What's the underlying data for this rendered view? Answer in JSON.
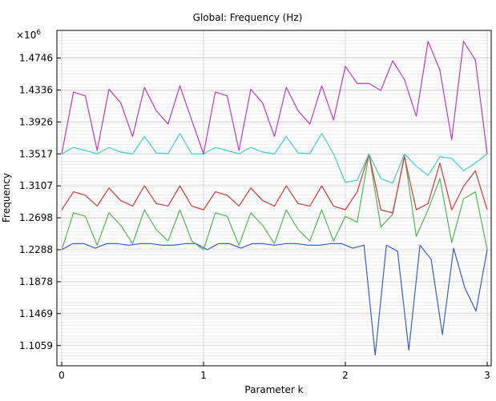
{
  "chart_data": {
    "type": "line",
    "title": "Global: Frequency (Hz)",
    "xlabel": "Parameter k",
    "ylabel": "Frequency",
    "y_multiplier": "×10",
    "y_multiplier_exp": "6",
    "xlim": [
      0,
      3
    ],
    "ylim": [
      1.08,
      1.51
    ],
    "x_ticks": [
      0,
      1,
      2,
      3
    ],
    "y_ticks": [
      1.1059,
      1.1469,
      1.1878,
      1.2288,
      1.2698,
      1.3107,
      1.3517,
      1.3926,
      1.4336,
      1.4746
    ],
    "grid": true,
    "series": [
      {
        "color": "#3b5bdb",
        "values": [
          1.2288,
          1.2366,
          1.2366,
          1.2308,
          1.2366,
          1.2366,
          1.2346,
          1.2366,
          1.2366,
          1.2346,
          1.2346,
          1.2366,
          1.2366,
          1.2288,
          1.2366,
          1.2366,
          1.2308,
          1.2366,
          1.2366,
          1.2346,
          1.2366,
          1.2366,
          1.2346,
          1.2346,
          1.2366,
          1.2366,
          1.2308,
          1.2346,
          1.0937,
          1.2346,
          1.2268,
          1.1,
          1.2346,
          1.2163,
          1.12,
          1.2308,
          1.18,
          1.15,
          1.2288
        ]
      },
      {
        "color": "#4cbb4c",
        "values": [
          1.2288,
          1.2762,
          1.2717,
          1.2346,
          1.2762,
          1.26,
          1.2366,
          1.28,
          1.2546,
          1.24,
          1.28,
          1.24,
          1.2288,
          1.2762,
          1.2717,
          1.2346,
          1.2762,
          1.26,
          1.2366,
          1.28,
          1.2546,
          1.24,
          1.28,
          1.24,
          1.2717,
          1.264,
          1.3517,
          1.258,
          1.274,
          1.35,
          1.246,
          1.28,
          1.32,
          1.238,
          1.294,
          1.3031,
          1.2288
        ]
      },
      {
        "color": "#d93636",
        "values": [
          1.28,
          1.3031,
          1.2987,
          1.2848,
          1.308,
          1.2917,
          1.2848,
          1.3107,
          1.288,
          1.2848,
          1.3107,
          1.2848,
          1.28,
          1.3031,
          1.2987,
          1.2848,
          1.308,
          1.2917,
          1.2848,
          1.3107,
          1.288,
          1.2848,
          1.3107,
          1.2848,
          1.28,
          1.3031,
          1.3517,
          1.28,
          1.276,
          1.348,
          1.28,
          1.288,
          1.34,
          1.28,
          1.31,
          1.33,
          1.28
        ]
      },
      {
        "color": "#3fcfcf",
        "values": [
          1.3517,
          1.36,
          1.356,
          1.3517,
          1.36,
          1.354,
          1.3517,
          1.374,
          1.353,
          1.352,
          1.378,
          1.3517,
          1.3517,
          1.36,
          1.356,
          1.3517,
          1.36,
          1.354,
          1.3517,
          1.374,
          1.353,
          1.352,
          1.378,
          1.3517,
          1.315,
          1.318,
          1.3517,
          1.32,
          1.314,
          1.3517,
          1.336,
          1.324,
          1.348,
          1.346,
          1.33,
          1.34,
          1.3517
        ]
      },
      {
        "color": "#c038c8",
        "values": [
          1.3517,
          1.431,
          1.426,
          1.356,
          1.4346,
          1.417,
          1.374,
          1.437,
          1.407,
          1.39,
          1.439,
          1.395,
          1.3517,
          1.431,
          1.426,
          1.356,
          1.4346,
          1.417,
          1.374,
          1.437,
          1.407,
          1.39,
          1.439,
          1.395,
          1.464,
          1.442,
          1.442,
          1.433,
          1.471,
          1.447,
          1.4,
          1.496,
          1.459,
          1.37,
          1.496,
          1.472,
          1.3517
        ]
      }
    ]
  }
}
